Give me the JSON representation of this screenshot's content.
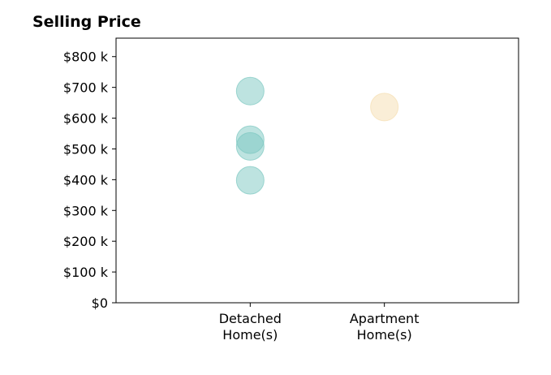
{
  "chart_data": {
    "type": "scatter",
    "title": "Selling Price",
    "xlabel": "",
    "ylabel": "",
    "categories": [
      [
        "Detached",
        "Home(s)"
      ],
      [
        "Apartment",
        "Home(s)"
      ]
    ],
    "ylim": [
      0,
      860
    ],
    "yticks": [
      {
        "value": 0,
        "label": "$0"
      },
      {
        "value": 100,
        "label": "$100 k"
      },
      {
        "value": 200,
        "label": "$200 k"
      },
      {
        "value": 300,
        "label": "$300 k"
      },
      {
        "value": 400,
        "label": "$400 k"
      },
      {
        "value": 500,
        "label": "$500 k"
      },
      {
        "value": 600,
        "label": "$600 k"
      },
      {
        "value": 700,
        "label": "$700 k"
      },
      {
        "value": 800,
        "label": "$800 k"
      }
    ],
    "series": [
      {
        "category": "Detached Home(s)",
        "color": "#7cc7c1",
        "values": [
          688,
          530,
          508,
          398
        ]
      },
      {
        "category": "Apartment Home(s)",
        "color": "#f5deb0",
        "values": [
          636
        ]
      }
    ],
    "grid": false,
    "legend": "none"
  }
}
